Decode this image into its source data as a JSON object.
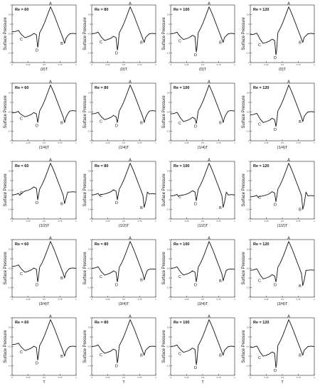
{
  "figure": {
    "ylabel": "Surface Pressure",
    "yticks": [
      "1",
      "0.5",
      "0",
      "-0.5",
      "-1",
      "-1.5",
      "-2"
    ],
    "xticks": [
      "0",
      "0.25",
      "0.5",
      "0.75",
      "1"
    ]
  },
  "chart_data": {
    "type": "line",
    "grid": false,
    "ylim": [
      -2,
      1
    ],
    "xlim": [
      0,
      1
    ],
    "reynolds_labels": [
      "Re = 60",
      "Re = 80",
      "Re = 100",
      "Re = 120"
    ],
    "phase_labels": [
      "(0)T",
      "(1/4)T",
      "(1/2)T",
      "(3/4)T",
      "T"
    ],
    "point_labels": [
      "A",
      "B",
      "C",
      "D"
    ],
    "panels": [
      {
        "row": 0,
        "col": 0,
        "re": "Re = 60",
        "phase": "(0)T",
        "y_start": -0.4,
        "y_end": -0.5,
        "C": [
          0.2,
          -0.7
        ],
        "D": [
          0.4,
          -1.2
        ],
        "A": [
          0.6,
          0.9
        ],
        "B": [
          0.82,
          -1.0
        ]
      },
      {
        "row": 0,
        "col": 1,
        "re": "Re = 80",
        "phase": "(0)T",
        "y_start": -0.5,
        "y_end": -0.5,
        "C": [
          0.2,
          -0.85
        ],
        "D": [
          0.4,
          -1.35
        ],
        "A": [
          0.6,
          0.9
        ],
        "B": [
          0.82,
          -0.95
        ]
      },
      {
        "row": 0,
        "col": 2,
        "re": "Re = 100",
        "phase": "(0)T",
        "y_start": -0.5,
        "y_end": -0.5,
        "C": [
          0.2,
          -0.8
        ],
        "D": [
          0.4,
          -1.45
        ],
        "A": [
          0.6,
          0.9
        ],
        "B": [
          0.82,
          -0.95
        ]
      },
      {
        "row": 0,
        "col": 3,
        "re": "Re = 120",
        "phase": "(0)T",
        "y_start": -0.55,
        "y_end": -0.5,
        "C": [
          0.2,
          -1.0
        ],
        "D": [
          0.4,
          -1.6
        ],
        "A": [
          0.6,
          0.9
        ],
        "B": [
          0.82,
          -0.95
        ]
      },
      {
        "row": 1,
        "col": 0,
        "re": "Re = 60",
        "phase": "(1/4)T",
        "y_start": -0.55,
        "y_end": -0.45,
        "C": [
          0.2,
          -0.75
        ],
        "D": [
          0.4,
          -1.05
        ],
        "A": [
          0.6,
          0.9
        ],
        "B": [
          0.82,
          -1.05
        ]
      },
      {
        "row": 1,
        "col": 1,
        "re": "Re = 80",
        "phase": "(1/4)T",
        "y_start": -0.6,
        "y_end": -0.45,
        "C": [
          0.2,
          -0.9
        ],
        "D": [
          0.4,
          -1.05
        ],
        "A": [
          0.6,
          0.9
        ],
        "B": [
          0.82,
          -1.05
        ]
      },
      {
        "row": 1,
        "col": 2,
        "re": "Re = 100",
        "phase": "(1/4)T",
        "y_start": -0.6,
        "y_end": -0.45,
        "C": [
          0.2,
          -1.0
        ],
        "D": [
          0.4,
          -1.1
        ],
        "A": [
          0.6,
          0.9
        ],
        "B": [
          0.82,
          -1.05
        ]
      },
      {
        "row": 1,
        "col": 3,
        "re": "Re = 120",
        "phase": "(1/4)T",
        "y_start": -0.65,
        "y_end": -0.5,
        "C": [
          0.2,
          -1.05
        ],
        "D": [
          0.4,
          -1.25
        ],
        "A": [
          0.6,
          0.9
        ],
        "B": [
          0.82,
          -1.0
        ]
      },
      {
        "row": 2,
        "col": 0,
        "re": "Re = 60",
        "phase": "(1/2)T",
        "y_start": -0.75,
        "y_end": -0.6,
        "C": [
          0.2,
          -0.55
        ],
        "D": [
          0.4,
          -1.0
        ],
        "A": [
          0.6,
          0.9
        ],
        "B": [
          0.82,
          -1.2
        ]
      },
      {
        "row": 2,
        "col": 1,
        "re": "Re = 80",
        "phase": "(1/2)T",
        "y_start": -0.75,
        "y_end": -0.7,
        "C": [
          0.2,
          -0.7
        ],
        "D": [
          0.4,
          -1.0
        ],
        "A": [
          0.6,
          0.9
        ],
        "B": [
          0.82,
          -1.4
        ]
      },
      {
        "row": 2,
        "col": 2,
        "re": "Re = 100",
        "phase": "(1/2)T",
        "y_start": -0.8,
        "y_end": -0.75,
        "C": [
          0.2,
          -0.75
        ],
        "D": [
          0.4,
          -1.05
        ],
        "A": [
          0.6,
          0.9
        ],
        "B": [
          0.82,
          -1.4
        ]
      },
      {
        "row": 2,
        "col": 3,
        "re": "Re = 120",
        "phase": "(1/2)T",
        "y_start": -0.85,
        "y_end": -0.8,
        "C": [
          0.2,
          -0.8
        ],
        "D": [
          0.4,
          -1.1
        ],
        "A": [
          0.6,
          0.9
        ],
        "B": [
          0.82,
          -1.5
        ]
      },
      {
        "row": 3,
        "col": 0,
        "re": "Re = 60",
        "phase": "(3/4)T",
        "y_start": -0.4,
        "y_end": -0.5,
        "C": [
          0.2,
          -0.7
        ],
        "D": [
          0.4,
          -1.2
        ],
        "A": [
          0.6,
          0.9
        ],
        "B": [
          0.82,
          -1.0
        ]
      },
      {
        "row": 3,
        "col": 1,
        "re": "Re = 80",
        "phase": "(3/4)T",
        "y_start": -0.5,
        "y_end": -0.55,
        "C": [
          0.2,
          -0.85
        ],
        "D": [
          0.4,
          -1.2
        ],
        "A": [
          0.6,
          0.9
        ],
        "B": [
          0.82,
          -1.1
        ]
      },
      {
        "row": 3,
        "col": 2,
        "re": "Re = 100",
        "phase": "(3/4)T",
        "y_start": -0.5,
        "y_end": -0.55,
        "C": [
          0.2,
          -0.85
        ],
        "D": [
          0.4,
          -1.2
        ],
        "A": [
          0.6,
          0.9
        ],
        "B": [
          0.82,
          -1.15
        ]
      },
      {
        "row": 3,
        "col": 3,
        "re": "Re = 120",
        "phase": "(3/4)T",
        "y_start": -0.6,
        "y_end": -0.6,
        "C": [
          0.2,
          -1.05
        ],
        "D": [
          0.4,
          -1.2
        ],
        "A": [
          0.6,
          0.9
        ],
        "B": [
          0.82,
          -1.4
        ]
      },
      {
        "row": 4,
        "col": 0,
        "re": "Re = 60",
        "phase": "T",
        "y_start": -0.4,
        "y_end": -0.5,
        "C": [
          0.2,
          -0.7
        ],
        "D": [
          0.4,
          -1.2
        ],
        "A": [
          0.6,
          0.9
        ],
        "B": [
          0.82,
          -1.0
        ]
      },
      {
        "row": 4,
        "col": 1,
        "re": "Re = 80",
        "phase": "T",
        "y_start": -0.5,
        "y_end": -0.5,
        "C": [
          0.2,
          -0.85
        ],
        "D": [
          0.4,
          -1.35
        ],
        "A": [
          0.6,
          0.9
        ],
        "B": [
          0.82,
          -0.95
        ]
      },
      {
        "row": 4,
        "col": 2,
        "re": "Re = 100",
        "phase": "T",
        "y_start": -0.5,
        "y_end": -0.5,
        "C": [
          0.2,
          -0.8
        ],
        "D": [
          0.4,
          -1.45
        ],
        "A": [
          0.6,
          0.9
        ],
        "B": [
          0.82,
          -0.95
        ]
      },
      {
        "row": 4,
        "col": 3,
        "re": "Re = 120",
        "phase": "T",
        "y_start": -0.55,
        "y_end": -0.5,
        "C": [
          0.2,
          -1.0
        ],
        "D": [
          0.4,
          -1.6
        ],
        "A": [
          0.6,
          0.9
        ],
        "B": [
          0.82,
          -0.95
        ]
      }
    ]
  }
}
